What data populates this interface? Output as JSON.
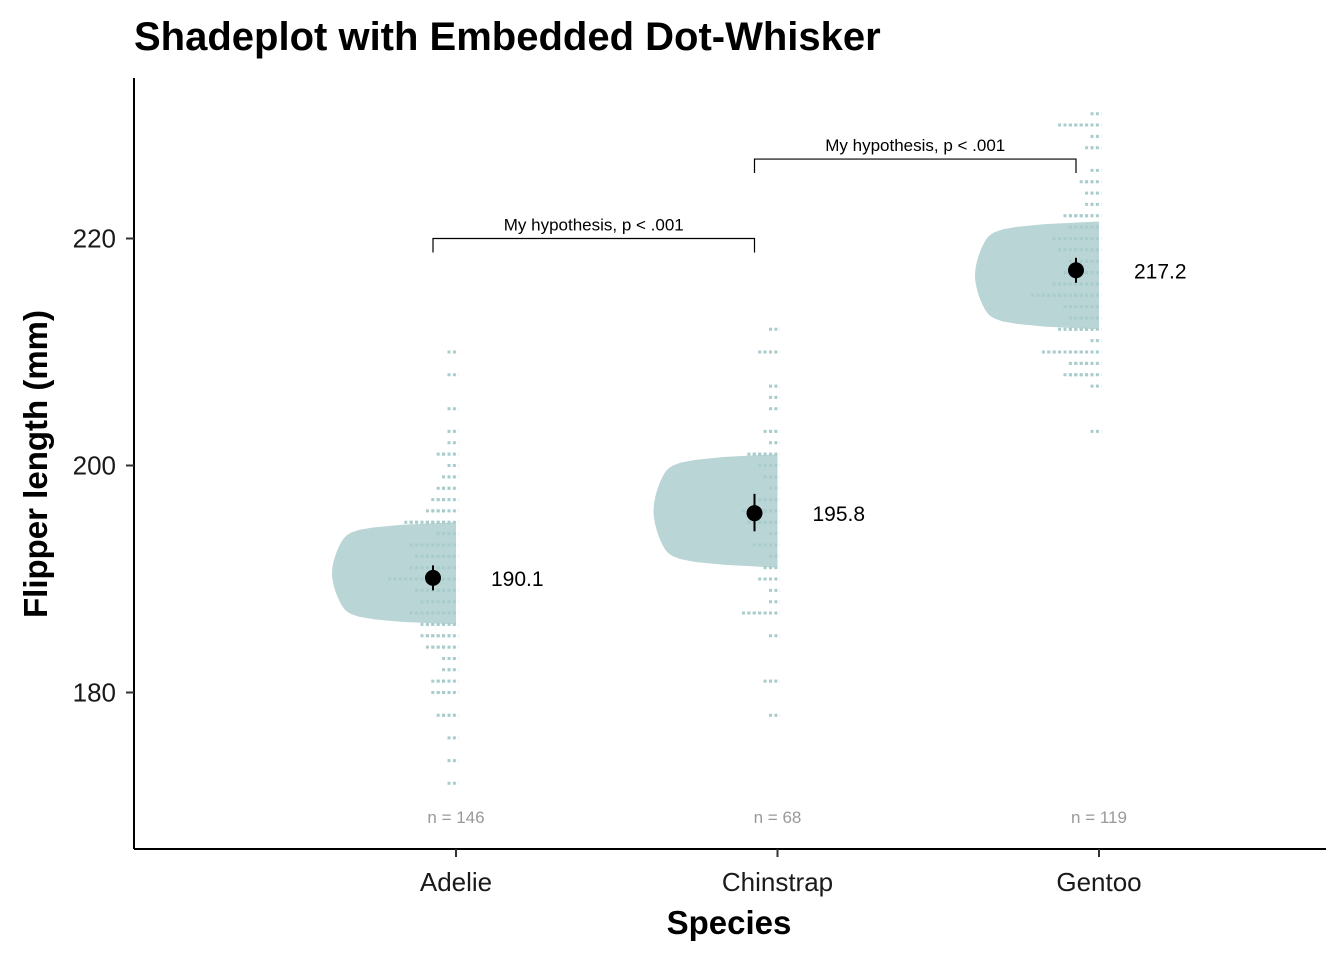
{
  "chart_data": {
    "type": "scatter",
    "title": "Shadeplot with Embedded Dot-Whisker",
    "xlabel": "Species",
    "ylabel": "Flipper length (mm)",
    "categories": [
      "Adelie",
      "Chinstrap",
      "Gentoo"
    ],
    "ylim": [
      170,
      234
    ],
    "y_ticks": [
      180,
      200,
      220
    ],
    "grid": false,
    "legend": "none",
    "colors": {
      "shade": "#b9d5d5",
      "dots": "#a9cccc",
      "point": "#000000",
      "counts": "#999999"
    },
    "groups": [
      {
        "name": "Adelie",
        "mean": 190.1,
        "mean_label": "190.1",
        "ci": [
          189.0,
          191.2
        ],
        "iqr": [
          186,
          195
        ],
        "n_label": "n = 146",
        "dots": [
          [
            172,
            1
          ],
          [
            174,
            1
          ],
          [
            176,
            1
          ],
          [
            178,
            3
          ],
          [
            180,
            4
          ],
          [
            181,
            4
          ],
          [
            182,
            2
          ],
          [
            183,
            2
          ],
          [
            184,
            5
          ],
          [
            185,
            6
          ],
          [
            186,
            6
          ],
          [
            187,
            8
          ],
          [
            188,
            6
          ],
          [
            189,
            7
          ],
          [
            190,
            12
          ],
          [
            191,
            8
          ],
          [
            192,
            7
          ],
          [
            193,
            8
          ],
          [
            194,
            3
          ],
          [
            195,
            9
          ],
          [
            196,
            5
          ],
          [
            197,
            4
          ],
          [
            198,
            3
          ],
          [
            199,
            2
          ],
          [
            200,
            1
          ],
          [
            201,
            3
          ],
          [
            202,
            1
          ],
          [
            203,
            1
          ],
          [
            205,
            1
          ],
          [
            208,
            1
          ],
          [
            210,
            1
          ]
        ]
      },
      {
        "name": "Chinstrap",
        "mean": 195.8,
        "mean_label": "195.8",
        "ci": [
          194.2,
          197.5
        ],
        "iqr": [
          191,
          201
        ],
        "n_label": "n = 68",
        "dots": [
          [
            178,
            1
          ],
          [
            181,
            2
          ],
          [
            185,
            1
          ],
          [
            187,
            6
          ],
          [
            188,
            1
          ],
          [
            189,
            1
          ],
          [
            190,
            3
          ],
          [
            191,
            2
          ],
          [
            192,
            1
          ],
          [
            193,
            4
          ],
          [
            194,
            1
          ],
          [
            195,
            5
          ],
          [
            196,
            6
          ],
          [
            197,
            3
          ],
          [
            198,
            1
          ],
          [
            199,
            2
          ],
          [
            200,
            3
          ],
          [
            201,
            5
          ],
          [
            202,
            1
          ],
          [
            203,
            2
          ],
          [
            205,
            1
          ],
          [
            206,
            1
          ],
          [
            207,
            1
          ],
          [
            210,
            3
          ],
          [
            212,
            1
          ]
        ]
      },
      {
        "name": "Gentoo",
        "mean": 217.2,
        "mean_label": "217.2",
        "ci": [
          216.1,
          218.3
        ],
        "iqr": [
          212,
          221.5
        ],
        "n_label": "n = 119",
        "dots": [
          [
            203,
            1
          ],
          [
            207,
            1
          ],
          [
            208,
            6
          ],
          [
            209,
            5
          ],
          [
            210,
            10
          ],
          [
            211,
            1
          ],
          [
            212,
            7
          ],
          [
            213,
            5
          ],
          [
            214,
            6
          ],
          [
            215,
            12
          ],
          [
            216,
            8
          ],
          [
            217,
            6
          ],
          [
            218,
            5
          ],
          [
            219,
            7
          ],
          [
            220,
            8
          ],
          [
            221,
            5
          ],
          [
            222,
            6
          ],
          [
            223,
            2
          ],
          [
            224,
            2
          ],
          [
            225,
            3
          ],
          [
            226,
            1
          ],
          [
            228,
            2
          ],
          [
            229,
            1
          ],
          [
            230,
            7
          ],
          [
            231,
            1
          ]
        ]
      }
    ],
    "comparisons": [
      {
        "from": "Adelie",
        "to": "Chinstrap",
        "y": 220,
        "label": "My hypothesis, p < .001"
      },
      {
        "from": "Chinstrap",
        "to": "Gentoo",
        "y": 227,
        "label": "My hypothesis, p < .001"
      }
    ]
  }
}
